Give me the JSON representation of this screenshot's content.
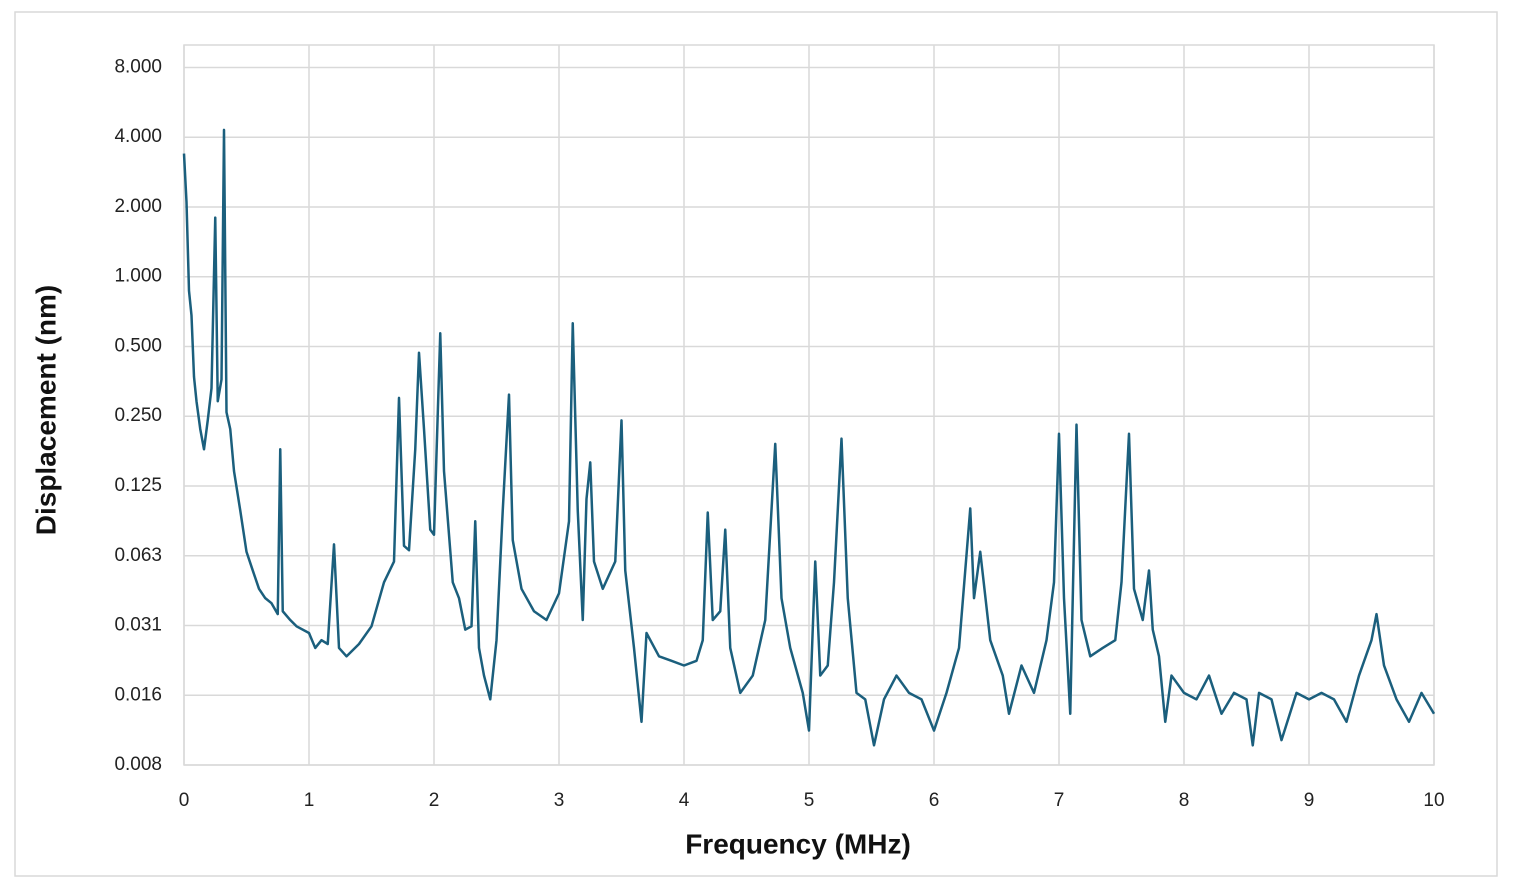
{
  "chart_data": {
    "type": "line",
    "x_label": "Frequency (MHz)",
    "y_label": "Displacement (nm)",
    "color": "#1b5f7d",
    "grid": true,
    "y_log_base": 2,
    "xlim": [
      0,
      10
    ],
    "xticks": [
      0,
      1,
      2,
      3,
      4,
      5,
      6,
      7,
      8,
      9,
      10
    ],
    "ylim": [
      0.0078125,
      10
    ],
    "yticks": [
      {
        "value": 0.0078125,
        "label": "0.008"
      },
      {
        "value": 0.015625,
        "label": "0.016"
      },
      {
        "value": 0.03125,
        "label": "0.031"
      },
      {
        "value": 0.0625,
        "label": "0.063"
      },
      {
        "value": 0.125,
        "label": "0.125"
      },
      {
        "value": 0.25,
        "label": "0.250"
      },
      {
        "value": 0.5,
        "label": "0.500"
      },
      {
        "value": 1,
        "label": "1.000"
      },
      {
        "value": 2,
        "label": "2.000"
      },
      {
        "value": 4,
        "label": "4.000"
      },
      {
        "value": 8,
        "label": "8.000"
      }
    ],
    "x": [
      0,
      0.02,
      0.04,
      0.06,
      0.08,
      0.1,
      0.13,
      0.16,
      0.19,
      0.22,
      0.25,
      0.27,
      0.3,
      0.32,
      0.34,
      0.37,
      0.4,
      0.45,
      0.5,
      0.55,
      0.6,
      0.65,
      0.7,
      0.75,
      0.77,
      0.79,
      0.85,
      0.9,
      1.0,
      1.05,
      1.1,
      1.15,
      1.2,
      1.24,
      1.3,
      1.4,
      1.5,
      1.6,
      1.68,
      1.72,
      1.76,
      1.8,
      1.85,
      1.88,
      1.92,
      1.97,
      2.0,
      2.05,
      2.08,
      2.15,
      2.2,
      2.25,
      2.3,
      2.33,
      2.36,
      2.4,
      2.45,
      2.5,
      2.55,
      2.6,
      2.63,
      2.7,
      2.8,
      2.9,
      3.0,
      3.08,
      3.11,
      3.15,
      3.19,
      3.22,
      3.25,
      3.28,
      3.35,
      3.45,
      3.5,
      3.53,
      3.6,
      3.66,
      3.7,
      3.8,
      3.9,
      4.0,
      4.1,
      4.15,
      4.19,
      4.23,
      4.29,
      4.33,
      4.37,
      4.45,
      4.55,
      4.65,
      4.73,
      4.78,
      4.85,
      4.95,
      5.0,
      5.05,
      5.09,
      5.15,
      5.2,
      5.26,
      5.31,
      5.38,
      5.45,
      5.52,
      5.6,
      5.7,
      5.8,
      5.9,
      6.0,
      6.1,
      6.2,
      6.29,
      6.32,
      6.37,
      6.45,
      6.55,
      6.6,
      6.7,
      6.8,
      6.9,
      6.96,
      7.0,
      7.04,
      7.09,
      7.14,
      7.18,
      7.25,
      7.35,
      7.45,
      7.5,
      7.56,
      7.6,
      7.67,
      7.72,
      7.75,
      7.8,
      7.85,
      7.9,
      8.0,
      8.1,
      8.2,
      8.3,
      8.4,
      8.5,
      8.55,
      8.6,
      8.7,
      8.78,
      8.9,
      9.0,
      9.1,
      9.2,
      9.3,
      9.4,
      9.5,
      9.54,
      9.6,
      9.7,
      9.8,
      9.9,
      10.0
    ],
    "values": [
      3.4,
      2.1,
      0.87,
      0.68,
      0.37,
      0.29,
      0.22,
      0.18,
      0.24,
      0.33,
      1.8,
      0.29,
      0.36,
      4.3,
      0.26,
      0.22,
      0.145,
      0.098,
      0.065,
      0.054,
      0.045,
      0.041,
      0.039,
      0.035,
      0.18,
      0.036,
      0.033,
      0.031,
      0.029,
      0.025,
      0.027,
      0.026,
      0.07,
      0.025,
      0.023,
      0.026,
      0.031,
      0.048,
      0.059,
      0.3,
      0.069,
      0.066,
      0.18,
      0.47,
      0.22,
      0.081,
      0.077,
      0.57,
      0.145,
      0.048,
      0.041,
      0.03,
      0.031,
      0.088,
      0.025,
      0.019,
      0.015,
      0.027,
      0.098,
      0.31,
      0.073,
      0.045,
      0.036,
      0.033,
      0.043,
      0.088,
      0.63,
      0.098,
      0.033,
      0.11,
      0.158,
      0.059,
      0.045,
      0.059,
      0.24,
      0.054,
      0.025,
      0.012,
      0.029,
      0.023,
      0.022,
      0.021,
      0.022,
      0.027,
      0.096,
      0.033,
      0.036,
      0.081,
      0.025,
      0.016,
      0.019,
      0.033,
      0.19,
      0.041,
      0.025,
      0.016,
      0.011,
      0.059,
      0.019,
      0.021,
      0.048,
      0.2,
      0.041,
      0.016,
      0.015,
      0.0095,
      0.015,
      0.019,
      0.016,
      0.015,
      0.011,
      0.016,
      0.025,
      0.1,
      0.041,
      0.065,
      0.027,
      0.019,
      0.013,
      0.021,
      0.016,
      0.027,
      0.048,
      0.21,
      0.041,
      0.013,
      0.23,
      0.033,
      0.023,
      0.025,
      0.027,
      0.048,
      0.21,
      0.045,
      0.033,
      0.054,
      0.03,
      0.023,
      0.012,
      0.019,
      0.016,
      0.015,
      0.019,
      0.013,
      0.016,
      0.015,
      0.0095,
      0.016,
      0.015,
      0.01,
      0.016,
      0.015,
      0.016,
      0.015,
      0.012,
      0.019,
      0.027,
      0.035,
      0.021,
      0.015,
      0.012,
      0.016,
      0.013
    ]
  }
}
